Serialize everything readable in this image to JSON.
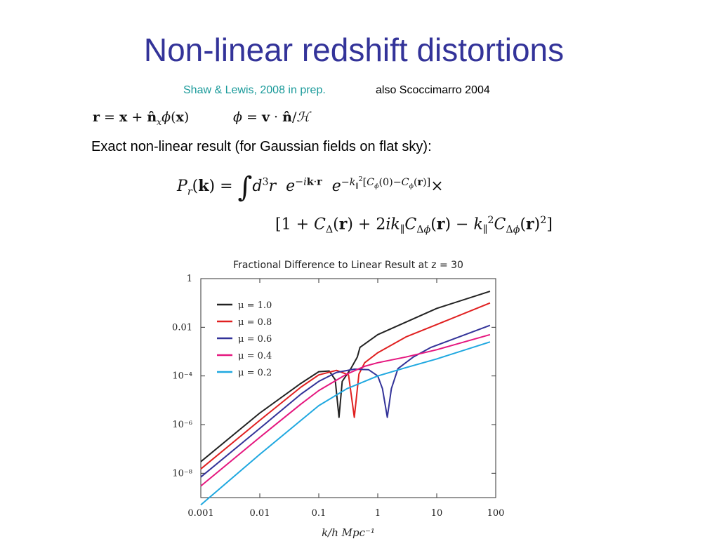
{
  "slide": {
    "title": "Non-linear redshift distortions",
    "reference_link": "Shaw & Lewis, 2008 in prep.",
    "reference_note": "also Scoccimarro 2004",
    "eq_mapping": "r = x + n̂ₓ ϕ(x)",
    "eq_phi": "ϕ = v · n̂/ℋ",
    "body_text": "Exact non-linear result (for Gaussian fields on flat sky):",
    "eq_power_line1": "Pᵣ(k) = ∫ d³r e^(−ik·r) e^(−k∥²[Cϕ(0)−Cϕ(r)]) ×",
    "eq_power_line2": "[1 + C_Δ(r) + 2ik∥ C_Δϕ(r) − k∥² C_Δϕ(r)²]",
    "colors": {
      "title": "#333399",
      "link": "#1a9a9a"
    }
  },
  "chart_data": {
    "type": "line",
    "title": "Fractional Difference to Linear Result at z = 30",
    "xlabel": "k/h Mpc⁻¹",
    "ylabel": "",
    "xscale": "log",
    "yscale": "log",
    "xlim": [
      0.001,
      100
    ],
    "ylim": [
      1e-09,
      1
    ],
    "xticks": [
      0.001,
      0.01,
      0.1,
      1,
      10,
      100
    ],
    "xtick_labels": [
      "0.001",
      "0.01",
      "0.1",
      "1",
      "10",
      "100"
    ],
    "yticks": [
      1,
      0.01,
      0.0001,
      1e-06,
      1e-08
    ],
    "ytick_labels": [
      "1",
      "0.01",
      "10⁻⁴",
      "10⁻⁶",
      "10⁻⁸"
    ],
    "legend_position": "top-left",
    "grid": false,
    "series": [
      {
        "name": "μ = 1.0",
        "color": "#222222",
        "points": [
          [
            0.001,
            3e-08
          ],
          [
            0.01,
            3e-06
          ],
          [
            0.05,
            5e-05
          ],
          [
            0.1,
            0.00015
          ],
          [
            0.15,
            0.00016
          ],
          [
            0.19,
            7e-05
          ],
          [
            0.22,
            2e-06
          ],
          [
            0.25,
            6e-05
          ],
          [
            0.35,
            0.0002
          ],
          [
            0.45,
            0.0006
          ],
          [
            0.5,
            0.0015
          ],
          [
            1,
            0.005
          ],
          [
            10,
            0.06
          ],
          [
            80,
            0.3
          ]
        ]
      },
      {
        "name": "μ = 0.8",
        "color": "#e02020",
        "points": [
          [
            0.001,
            1.5e-08
          ],
          [
            0.01,
            1.5e-06
          ],
          [
            0.05,
            3.5e-05
          ],
          [
            0.1,
            0.00011
          ],
          [
            0.2,
            0.00017
          ],
          [
            0.32,
            0.00011
          ],
          [
            0.4,
            2e-06
          ],
          [
            0.48,
            0.00012
          ],
          [
            0.6,
            0.00035
          ],
          [
            1,
            0.0009
          ],
          [
            3,
            0.004
          ],
          [
            10,
            0.013
          ],
          [
            80,
            0.1
          ]
        ]
      },
      {
        "name": "μ = 0.6",
        "color": "#333399",
        "points": [
          [
            0.001,
            7e-09
          ],
          [
            0.01,
            7e-07
          ],
          [
            0.05,
            1.8e-05
          ],
          [
            0.1,
            6e-05
          ],
          [
            0.2,
            0.00014
          ],
          [
            0.4,
            0.00019
          ],
          [
            0.7,
            0.00018
          ],
          [
            1.0,
            0.0001
          ],
          [
            1.2,
            3e-05
          ],
          [
            1.45,
            2e-06
          ],
          [
            1.7,
            3e-05
          ],
          [
            2.2,
            0.0002
          ],
          [
            4,
            0.0006
          ],
          [
            8,
            0.0015
          ],
          [
            80,
            0.012
          ]
        ]
      },
      {
        "name": "μ = 0.4",
        "color": "#e5177f",
        "points": [
          [
            0.001,
            3e-09
          ],
          [
            0.01,
            3e-07
          ],
          [
            0.05,
            7e-06
          ],
          [
            0.1,
            2.5e-05
          ],
          [
            0.3,
            0.00012
          ],
          [
            0.6,
            0.00025
          ],
          [
            1,
            0.00035
          ],
          [
            3,
            0.0006
          ],
          [
            10,
            0.0012
          ],
          [
            80,
            0.005
          ]
        ]
      },
      {
        "name": "μ = 0.2",
        "color": "#1fa8e0",
        "points": [
          [
            0.001,
            5e-10
          ],
          [
            0.01,
            6e-08
          ],
          [
            0.05,
            1.5e-06
          ],
          [
            0.1,
            6e-06
          ],
          [
            0.3,
            3e-05
          ],
          [
            1,
            0.0001
          ],
          [
            3,
            0.00022
          ],
          [
            10,
            0.0005
          ],
          [
            80,
            0.0025
          ]
        ]
      }
    ]
  }
}
